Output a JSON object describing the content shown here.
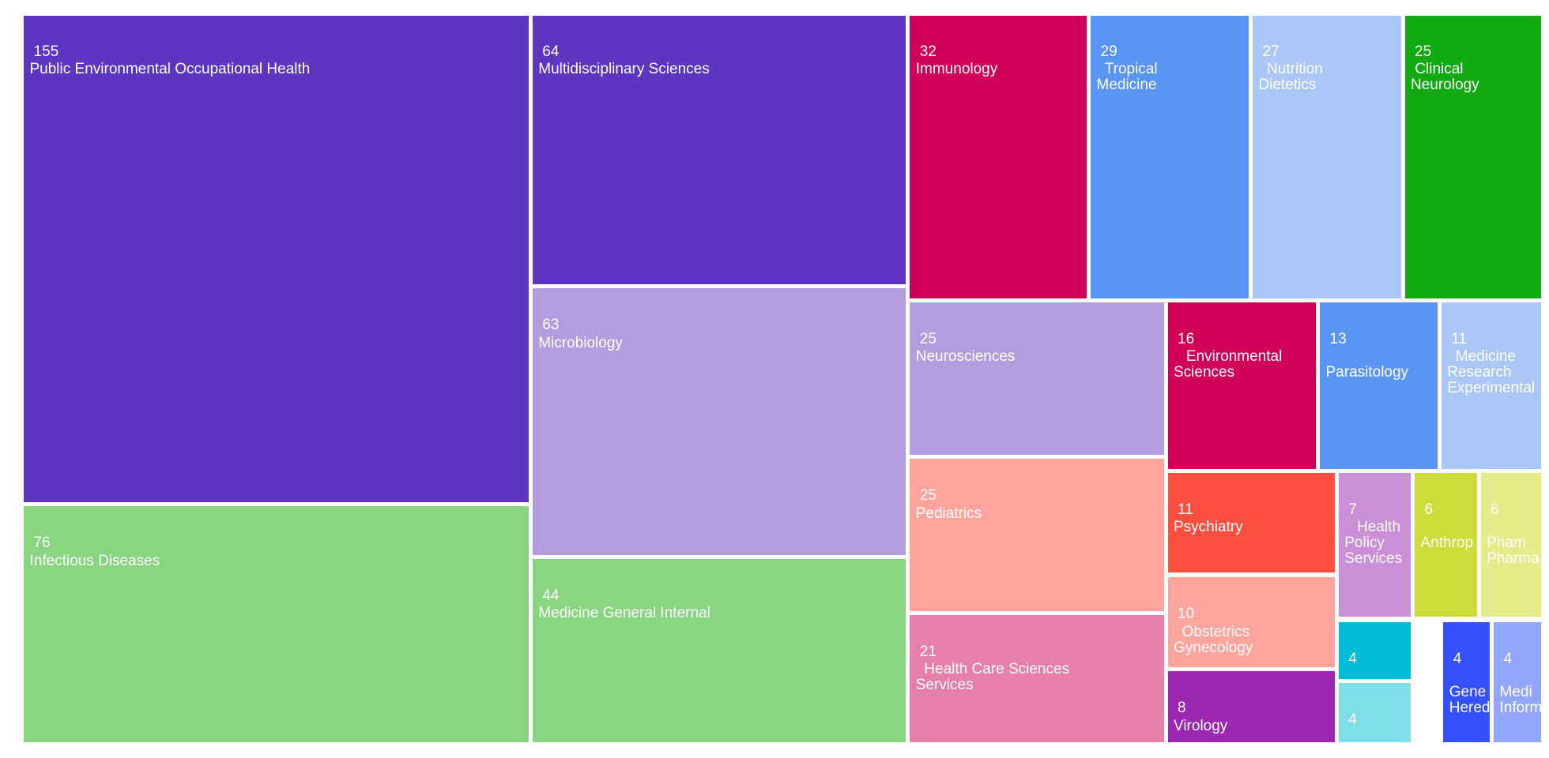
{
  "chart_data": {
    "type": "treemap",
    "title": "",
    "value_unit": "",
    "items": [
      {
        "name": "Public Environmental Occupational Health",
        "label_lines": [
          "Public Environmental Occupational Health"
        ],
        "value": 155,
        "color": "#5e35c0"
      },
      {
        "name": "Infectious Diseases",
        "label_lines": [
          "Infectious Diseases"
        ],
        "value": 76,
        "color": "#8ad582"
      },
      {
        "name": "Multidisciplinary Sciences",
        "label_lines": [
          "Multidisciplinary Sciences"
        ],
        "value": 64,
        "color": "#5e35c0"
      },
      {
        "name": "Microbiology",
        "label_lines": [
          "Microbiology"
        ],
        "value": 63,
        "color": "#b39ddf"
      },
      {
        "name": "Medicine General Internal",
        "label_lines": [
          "Medicine General Internal"
        ],
        "value": 44,
        "color": "#8ad582"
      },
      {
        "name": "Immunology",
        "label_lines": [
          "Immunology"
        ],
        "value": 32,
        "color": "#d00059"
      },
      {
        "name": "Tropical Medicine",
        "label_lines": [
          "Tropical",
          "Medicine"
        ],
        "value": 29,
        "color": "#5895f5"
      },
      {
        "name": "Nutrition Dietetics",
        "label_lines": [
          "Nutrition",
          "Dietetics"
        ],
        "value": 27,
        "color": "#aac7f8"
      },
      {
        "name": "Clinical Neurology",
        "label_lines": [
          "Clinical",
          "Neurology"
        ],
        "value": 25,
        "color": "#12aa12"
      },
      {
        "name": "Neurosciences",
        "label_lines": [
          "Neurosciences"
        ],
        "value": 25,
        "color": "#b39ddf"
      },
      {
        "name": "Pediatrics",
        "label_lines": [
          "Pediatrics"
        ],
        "value": 25,
        "color": "#ffa59d"
      },
      {
        "name": "Health Care Sciences Services",
        "label_lines": [
          "Health Care Sciences",
          "Services"
        ],
        "value": 21,
        "color": "#e680aa"
      },
      {
        "name": "Environmental Sciences",
        "label_lines": [
          "Environmental",
          "Sciences"
        ],
        "value": 16,
        "color": "#d00059"
      },
      {
        "name": "Parasitology",
        "label_lines": [
          "",
          "Parasitology"
        ],
        "value": 13,
        "color": "#5895f5"
      },
      {
        "name": "Medicine Research Experimental",
        "label_lines": [
          "Medicine",
          "Research",
          "Experimental"
        ],
        "value": 11,
        "color": "#aac7f8"
      },
      {
        "name": "Psychiatry",
        "label_lines": [
          "Psychiatry"
        ],
        "value": 11,
        "color": "#ff4f40"
      },
      {
        "name": "Obstetrics Gynecology",
        "label_lines": [
          "Obstetrics",
          "Gynecology"
        ],
        "value": 10,
        "color": "#ffa59d"
      },
      {
        "name": "Virology",
        "label_lines": [
          "Virology"
        ],
        "value": 8,
        "color": "#9c27b0"
      },
      {
        "name": "Health Policy Services",
        "label_lines": [
          "Health",
          "Policy",
          "Services"
        ],
        "value": 7,
        "color": "#ca8fd6"
      },
      {
        "name": "Anthrop",
        "label_lines": [
          "",
          "Anthrop"
        ],
        "value": 6,
        "color": "#cddc39"
      },
      {
        "name": "Pham Pharma",
        "label_lines": [
          "",
          "Pham",
          "Pharma"
        ],
        "value": 6,
        "color": "#e6eb8a"
      },
      {
        "name": "",
        "label_lines": [],
        "value": 4,
        "color": "#00bcd6"
      },
      {
        "name": "",
        "label_lines": [],
        "value": 4,
        "color": "#80deea"
      },
      {
        "name": "Gene Hered",
        "label_lines": [
          "",
          "Gene",
          "Hered"
        ],
        "value": 4,
        "color": "#3451fd"
      },
      {
        "name": "Medi Inform",
        "label_lines": [
          "",
          "Medi",
          "Inform"
        ],
        "value": 4,
        "color": "#93a6fd"
      }
    ]
  }
}
